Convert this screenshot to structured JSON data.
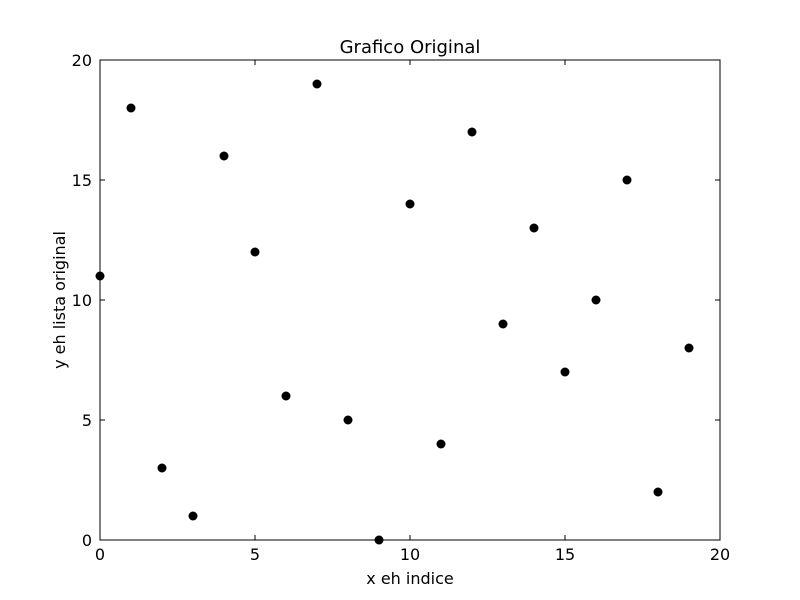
{
  "chart_data": {
    "type": "scatter",
    "title": "Grafico Original",
    "xlabel": "x eh indice",
    "ylabel": "y eh lista original",
    "xlim": [
      0,
      20
    ],
    "ylim": [
      0,
      20
    ],
    "xticks": [
      0,
      5,
      10,
      15,
      20
    ],
    "yticks": [
      0,
      5,
      10,
      15,
      20
    ],
    "grid": false,
    "marker_color": "#000000",
    "series": [
      {
        "x": [
          0,
          1,
          2,
          3,
          4,
          5,
          6,
          7,
          8,
          9,
          10,
          11,
          12,
          13,
          14,
          15,
          16,
          17,
          18,
          19
        ],
        "y": [
          11,
          18,
          3,
          1,
          16,
          12,
          6,
          19,
          5,
          0,
          14,
          4,
          17,
          9,
          13,
          7,
          10,
          15,
          2,
          8
        ]
      }
    ]
  }
}
